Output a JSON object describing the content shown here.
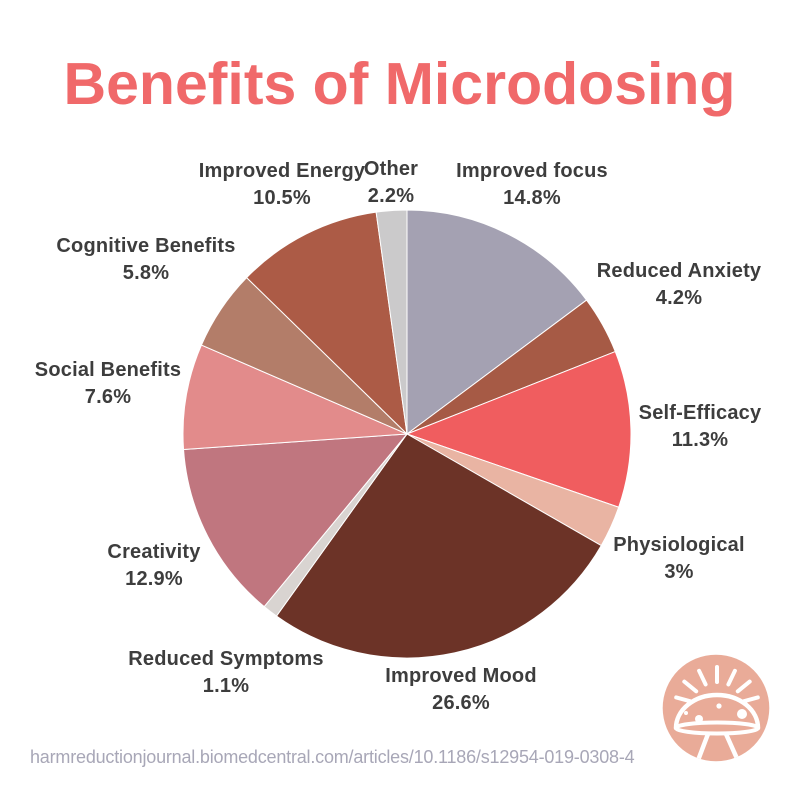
{
  "title": "Benefits of Microdosing",
  "source_url": "harmreductionjournal.biomedcentral.com/articles/10.1186/s12954-019-0308-4",
  "colors": {
    "background": "#FFFFFF",
    "title_text": "#F0696A",
    "label_text": "#3D3D3D",
    "url_text": "#A8A7B7",
    "slice_divider": "#FFFFFF",
    "logo_circle": "#E9AB98",
    "logo_drawing": "#FFFFFF"
  },
  "logo": {
    "name": "mushroom-logo",
    "description": "salmon circle with white line-art mushroom and radiating rays"
  },
  "chart_data": {
    "type": "pie",
    "title": "Benefits of Microdosing",
    "start_angle_deg": 0,
    "direction": "clockwise",
    "legend_position": "none",
    "labels_style": "outside, category name above percentage",
    "slices": [
      {
        "label": "Improved focus",
        "value": 14.8,
        "display": "14.8%",
        "color": "#A4A1B2"
      },
      {
        "label": "Reduced Anxiety",
        "value": 4.2,
        "display": "4.2%",
        "color": "#A65A45"
      },
      {
        "label": "Self-Efficacy",
        "value": 11.3,
        "display": "11.3%",
        "color": "#F05D5F"
      },
      {
        "label": "Physiological",
        "value": 3,
        "display": "3%",
        "color": "#E9B4A3"
      },
      {
        "label": "Improved Mood",
        "value": 26.6,
        "display": "26.6%",
        "color": "#6C3327"
      },
      {
        "label": "Reduced Symptoms",
        "value": 1.1,
        "display": "1.1%",
        "color": "#D9D4D1"
      },
      {
        "label": "Creativity",
        "value": 12.9,
        "display": "12.9%",
        "color": "#C0767F"
      },
      {
        "label": "Social Benefits",
        "value": 7.6,
        "display": "7.6%",
        "color": "#E28B8B"
      },
      {
        "label": "Cognitive Benefits",
        "value": 5.8,
        "display": "5.8%",
        "color": "#B37D69"
      },
      {
        "label": "Improved Energy",
        "value": 10.5,
        "display": "10.5%",
        "color": "#AC5B46"
      },
      {
        "label": "Other",
        "value": 2.2,
        "display": "2.2%",
        "color": "#CBCACB"
      }
    ]
  }
}
